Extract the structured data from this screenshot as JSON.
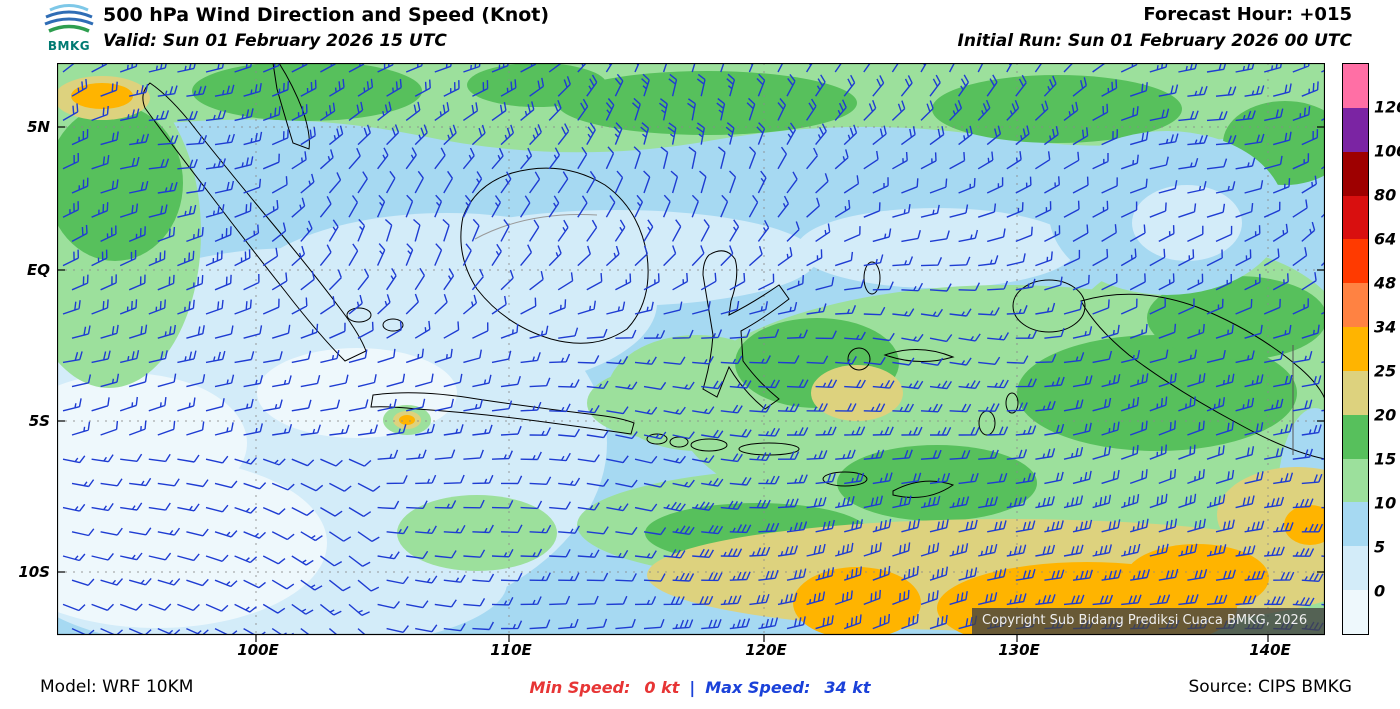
{
  "header": {
    "logo_text": "BMKG",
    "title": "500 hPa Wind Direction and Speed (Knot)",
    "valid": "Valid: Sun 01 February 2026 15 UTC",
    "forecast_hour": "Forecast Hour: +015",
    "initial_run": "Initial Run: Sun 01 February 2026 00 UTC"
  },
  "map": {
    "lat_labels": [
      "5N",
      "EQ",
      "5S",
      "10S"
    ],
    "lon_labels": [
      "100E",
      "110E",
      "120E",
      "130E",
      "140E"
    ],
    "copyright": "Copyright Sub Bidang Prediksi Cuaca BMKG, 2026",
    "barb_color": "#1e3cd2"
  },
  "legend": {
    "labels": [
      "120",
      "100",
      "80",
      "64",
      "48",
      "34",
      "25",
      "20",
      "15",
      "10",
      "5",
      "0"
    ],
    "colors_top_to_bottom": [
      "#ff6fa5",
      "#7b24a3",
      "#9e0000",
      "#d90f0f",
      "#ff3a00",
      "#ff8242",
      "#ffb400",
      "#ddd27e",
      "#57c05c",
      "#9ce09c",
      "#a6d9f2",
      "#d3ecf9",
      "#eef8fc"
    ]
  },
  "footer": {
    "model": "Model: WRF 10KM",
    "min_speed_label": "Min Speed:",
    "min_speed_value": "0 kt",
    "divider": "|",
    "max_speed_label": "Max Speed:",
    "max_speed_value": "34 kt",
    "source": "Source: CIPS BMKG"
  },
  "chart_data": {
    "type": "heatmap",
    "title": "500 hPa Wind Direction and Speed (Knot)",
    "units": "knot",
    "valid": "Sun 01 February 2026 15 UTC",
    "initial_run": "Sun 01 February 2026 00 UTC",
    "forecast_hour": "+015",
    "model": "WRF 10KM",
    "source": "CIPS BMKG",
    "lat_ticks": [
      "5N",
      "EQ",
      "5S",
      "10S"
    ],
    "lon_ticks": [
      "100E",
      "110E",
      "120E",
      "130E",
      "140E"
    ],
    "speed_scale_boundaries_kt": [
      0,
      5,
      10,
      15,
      20,
      25,
      34,
      48,
      64,
      80,
      100,
      120
    ],
    "min_speed_kt": 0,
    "max_speed_kt": 34
  }
}
